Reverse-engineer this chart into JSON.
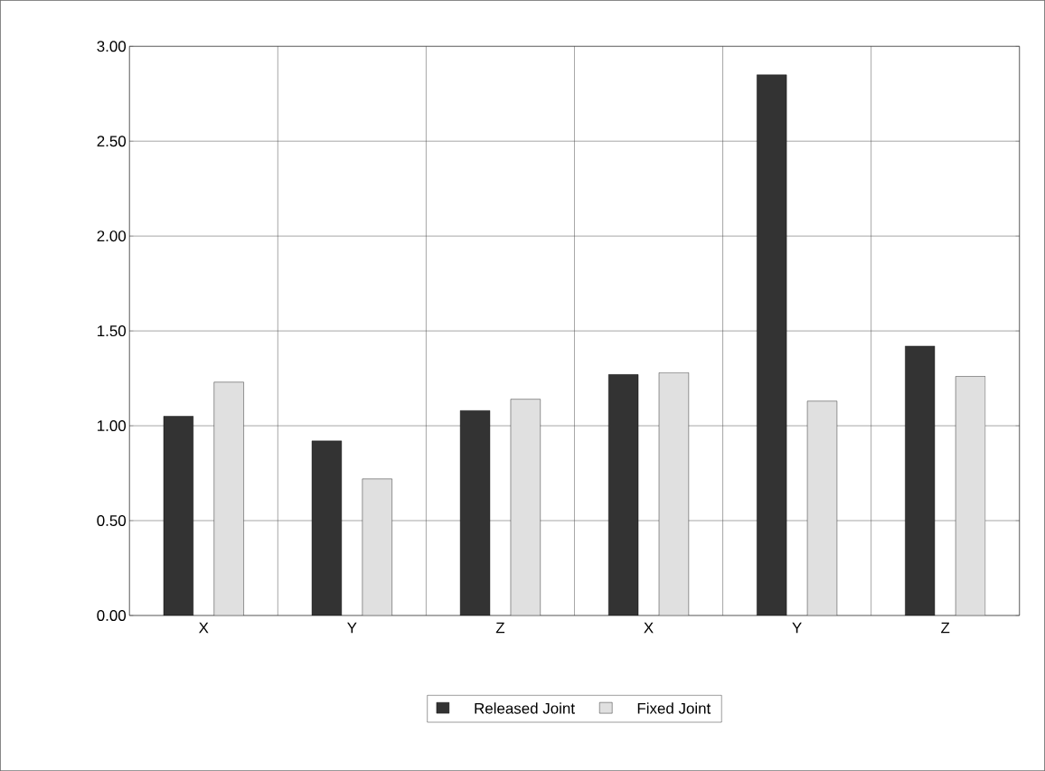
{
  "chart_data": {
    "type": "bar",
    "categories": [
      "X",
      "Y",
      "Z",
      "X",
      "Y",
      "Z"
    ],
    "series": [
      {
        "name": "Released Joint",
        "color": "#333333",
        "values": [
          1.05,
          0.92,
          1.08,
          1.27,
          2.85,
          1.42
        ]
      },
      {
        "name": "Fixed Joint",
        "color": "#e0e0e0",
        "values": [
          1.23,
          0.72,
          1.14,
          1.28,
          1.13,
          1.26
        ]
      }
    ],
    "ylim": [
      0,
      3
    ],
    "yticks": [
      {
        "value": 0,
        "label": "0.00"
      },
      {
        "value": 0.5,
        "label": "0.50"
      },
      {
        "value": 1,
        "label": "1.00"
      },
      {
        "value": 1.5,
        "label": "1.50"
      },
      {
        "value": 2,
        "label": "2.00"
      },
      {
        "value": 2.5,
        "label": "2.50"
      },
      {
        "value": 3,
        "label": "3.00"
      }
    ],
    "grid": true,
    "legend": "bottom"
  }
}
